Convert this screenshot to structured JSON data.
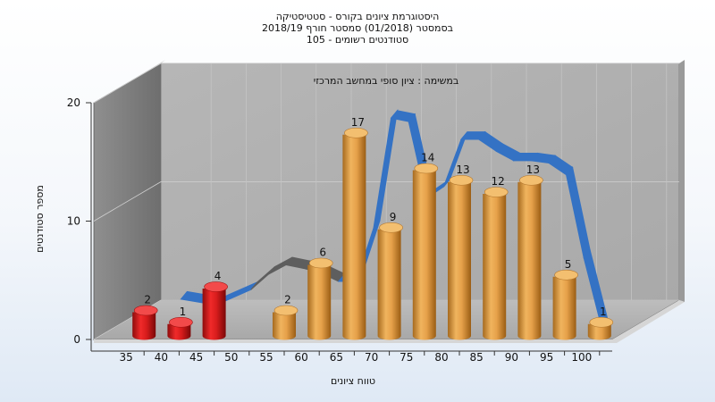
{
  "chart_data": {
    "type": "bar",
    "title_lines": [
      "היסטוגרמת ציונים בקורס - סטטיסטיקה",
      "בסמסטר  (01/2018)  סמסטר חורף 2018/19",
      "סטודנטים רשומים - 105"
    ],
    "annotation": "במשימה : ציון סופי במחשב המרכזי",
    "xlabel": "טווח ציונים",
    "ylabel": "מספר סטודנטים",
    "categories": [
      "35",
      "40",
      "45",
      "50",
      "55",
      "60",
      "65",
      "70",
      "75",
      "80",
      "85",
      "90",
      "95",
      "100"
    ],
    "values": [
      2,
      1,
      4,
      null,
      2,
      6,
      17,
      9,
      14,
      13,
      12,
      13,
      5,
      1
    ],
    "ylim": [
      0,
      20
    ],
    "yticks": [
      0,
      10,
      20
    ],
    "grid": true,
    "fail_threshold": 50,
    "colors": {
      "fail": "#dd1c1c",
      "pass": "#e6a14a",
      "curve": "#3472c4",
      "curve_shadow": "#5e5e5e"
    },
    "curve": {
      "x": [
        40,
        45,
        50,
        52.5,
        55,
        57.5,
        60,
        62.5,
        65,
        67.5,
        70,
        72.5,
        75,
        77.5,
        80,
        82.5,
        85,
        87.5,
        90,
        92.5,
        95,
        97.5,
        100
      ],
      "y": [
        2.5,
        2,
        3.3,
        4.6,
        5.4,
        5.1,
        4.7,
        4.0,
        4.0,
        8.5,
        17.8,
        17.5,
        11.0,
        12.0,
        16.0,
        16.0,
        15.0,
        14.2,
        14.2,
        14.0,
        13.0,
        6.0,
        0.2
      ]
    }
  }
}
